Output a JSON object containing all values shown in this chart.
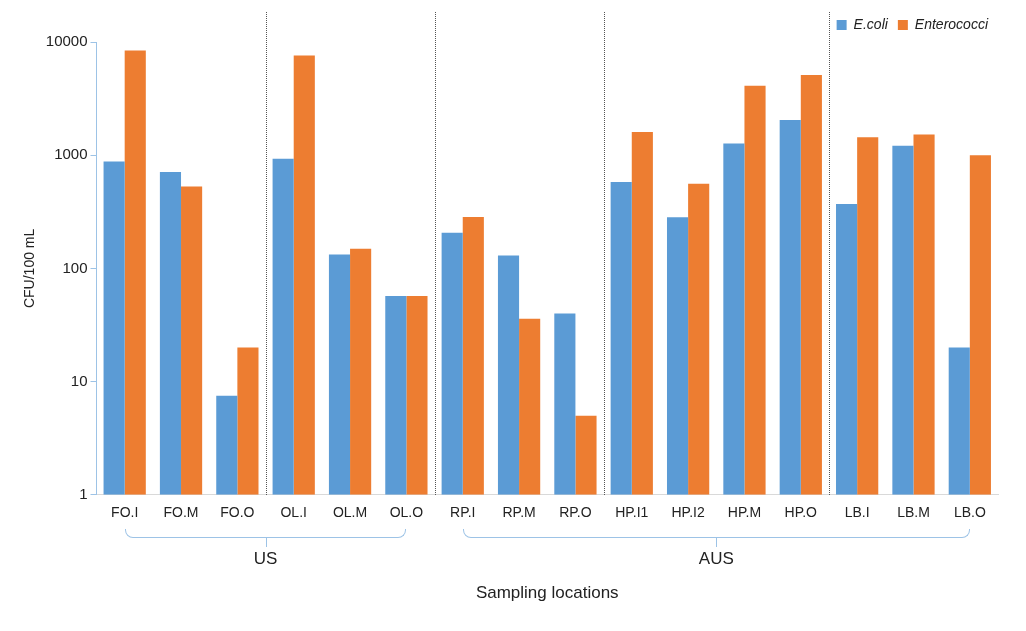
{
  "chart_data": {
    "type": "bar",
    "xlabel": "Sampling locations",
    "ylabel": "CFU/100 mL",
    "categories": [
      "FO.I",
      "FO.M",
      "FO.O",
      "OL.I",
      "OL.M",
      "OL.O",
      "RP.I",
      "RP.M",
      "RP.O",
      "HP.I1",
      "HP.I2",
      "HP.M",
      "HP.O",
      "LB.I",
      "LB.M",
      "LB.O"
    ],
    "series": [
      {
        "name": "E.coli",
        "color": "#5b9bd5",
        "values": [
          880,
          710,
          7.5,
          930,
          133,
          57,
          207,
          130,
          40,
          580,
          283,
          1270,
          2050,
          370,
          1210,
          20
        ]
      },
      {
        "name": "Enterococci",
        "color": "#ed7d31",
        "values": [
          8400,
          530,
          20,
          7600,
          149,
          57,
          285,
          36,
          5,
          1600,
          560,
          4100,
          5100,
          1440,
          1520,
          1000
        ]
      }
    ],
    "log": "y",
    "ylim": [
      1,
      10000
    ],
    "yticks": [
      1,
      10,
      100,
      1000,
      10000
    ],
    "grid": false,
    "legend": "top right",
    "annotations": [
      "US",
      "AUS"
    ]
  }
}
